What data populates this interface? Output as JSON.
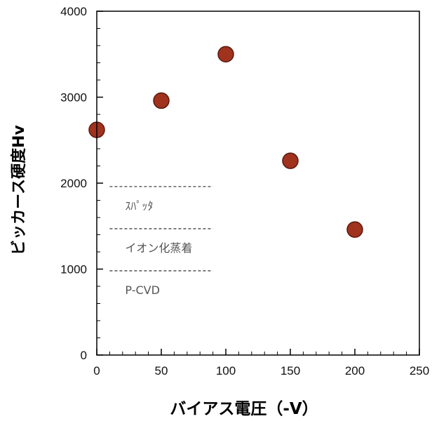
{
  "chart_data": {
    "type": "scatter",
    "x": [
      0,
      50,
      100,
      150,
      200
    ],
    "y": [
      2620,
      2960,
      3500,
      2260,
      1460
    ],
    "xlabel": "バイアス電圧（-V）",
    "ylabel": "ビッカース硬度Hv",
    "xlim": [
      0,
      250
    ],
    "ylim": [
      0,
      4000
    ],
    "xticks": [
      0,
      50,
      100,
      150,
      200,
      250
    ],
    "yticks": [
      0,
      1000,
      2000,
      3000,
      4000
    ],
    "grid": false,
    "marker_color": "#a0321e",
    "reference_lines": [
      {
        "label": "ｽﾊﾟｯﾀ",
        "y": 1960,
        "x_range": [
          10,
          90
        ]
      },
      {
        "label": "イオン化蒸着",
        "y": 1470,
        "x_range": [
          10,
          90
        ]
      },
      {
        "label": "P-CVD",
        "y": 980,
        "x_range": [
          10,
          90
        ]
      }
    ]
  }
}
